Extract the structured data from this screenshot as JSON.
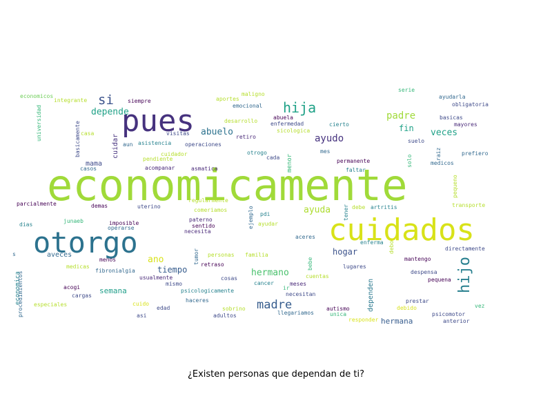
{
  "caption": "¿Existen personas que dependan de ti?",
  "palette": [
    "#440154",
    "#482878",
    "#3e4a89",
    "#31688e",
    "#26828e",
    "#1f9e89",
    "#35b779",
    "#6ece58",
    "#b5de2b",
    "#fde725"
  ],
  "chart_data": {
    "type": "wordcloud",
    "title": "¿Existen personas que dependan de ti?",
    "words": [
      {
        "text": "economicamente",
        "weight": 100,
        "color": "#a0da39"
      },
      {
        "text": "cuidados",
        "weight": 56,
        "color": "#d8e219"
      },
      {
        "text": "pues",
        "weight": 52,
        "color": "#46327e"
      },
      {
        "text": "otorgo",
        "weight": 48,
        "color": "#2c728e"
      },
      {
        "text": "hija",
        "weight": 25,
        "color": "#1fa187"
      },
      {
        "text": "hijo",
        "weight": 24,
        "color": "#277f8e"
      },
      {
        "text": "si",
        "weight": 22,
        "color": "#3b528b"
      },
      {
        "text": "madre",
        "weight": 20,
        "color": "#365c8d"
      },
      {
        "text": "padre",
        "weight": 17,
        "color": "#a0da39"
      },
      {
        "text": "hermano",
        "weight": 16,
        "color": "#4ac16d"
      },
      {
        "text": "depende",
        "weight": 15,
        "color": "#1fa187"
      },
      {
        "text": "ayudo",
        "weight": 15,
        "color": "#46327e"
      },
      {
        "text": "abuelo",
        "weight": 14,
        "color": "#2c728e"
      },
      {
        "text": "ayuda",
        "weight": 14,
        "color": "#addc30"
      },
      {
        "text": "veces",
        "weight": 14,
        "color": "#1fa187"
      },
      {
        "text": "ano",
        "weight": 13,
        "color": "#d8e219"
      },
      {
        "text": "tiempo",
        "weight": 13,
        "color": "#365c8d"
      },
      {
        "text": "hogar",
        "weight": 13,
        "color": "#3b528b"
      },
      {
        "text": "fin",
        "weight": 13,
        "color": "#1fa187"
      },
      {
        "text": "semana",
        "weight": 12,
        "color": "#1f9e89"
      },
      {
        "text": "hermana",
        "weight": 12,
        "color": "#365c8d"
      },
      {
        "text": "cuidar",
        "weight": 11,
        "color": "#46327e"
      },
      {
        "text": "mama",
        "weight": 11,
        "color": "#3e4a89"
      },
      {
        "text": "aveces",
        "weight": 11,
        "color": "#31688e"
      },
      {
        "text": "menor",
        "weight": 11,
        "color": "#35b779"
      },
      {
        "text": "economica",
        "weight": 11,
        "color": "#26828e"
      },
      {
        "text": "dependen",
        "weight": 11,
        "color": "#2a788e"
      },
      {
        "text": "universidad",
        "weight": 9,
        "color": "#35b779"
      },
      {
        "text": "basicamente",
        "weight": 9,
        "color": "#3e4a89"
      },
      {
        "text": "procedimientos",
        "weight": 9,
        "color": "#31688e"
      },
      {
        "text": "economicos",
        "weight": 9,
        "color": "#6ece58"
      },
      {
        "text": "integrante",
        "weight": 9,
        "color": "#b5de2b"
      },
      {
        "text": "siempre",
        "weight": 9,
        "color": "#440154"
      },
      {
        "text": "aportes",
        "weight": 9,
        "color": "#b5de2b"
      },
      {
        "text": "maligno",
        "weight": 9,
        "color": "#b5de2b"
      },
      {
        "text": "emocional",
        "weight": 9,
        "color": "#31688e"
      },
      {
        "text": "desarrollo",
        "weight": 9,
        "color": "#b5de2b"
      },
      {
        "text": "abuela",
        "weight": 9,
        "color": "#440154"
      },
      {
        "text": "enfermedad",
        "weight": 9,
        "color": "#3e4a89"
      },
      {
        "text": "cierto",
        "weight": 9,
        "color": "#26828e"
      },
      {
        "text": "sicologica",
        "weight": 9,
        "color": "#b5de2b"
      },
      {
        "text": "retiro",
        "weight": 9,
        "color": "#482878"
      },
      {
        "text": "serie",
        "weight": 9,
        "color": "#35b779"
      },
      {
        "text": "ayudarla",
        "weight": 9,
        "color": "#31688e"
      },
      {
        "text": "obligatoria",
        "weight": 9,
        "color": "#3e4a89"
      },
      {
        "text": "basicas",
        "weight": 9,
        "color": "#3e4a89"
      },
      {
        "text": "mayores",
        "weight": 9,
        "color": "#482878"
      },
      {
        "text": "casa",
        "weight": 9,
        "color": "#b5de2b"
      },
      {
        "text": "visitas",
        "weight": 9,
        "color": "#3e4a89"
      },
      {
        "text": "aun",
        "weight": 9,
        "color": "#31688e"
      },
      {
        "text": "asistencia",
        "weight": 9,
        "color": "#26828e"
      },
      {
        "text": "operaciones",
        "weight": 9,
        "color": "#3e4a89"
      },
      {
        "text": "suelo",
        "weight": 9,
        "color": "#3e4a89"
      },
      {
        "text": "mes",
        "weight": 9,
        "color": "#31688e"
      },
      {
        "text": "otrogo",
        "weight": 9,
        "color": "#26828e"
      },
      {
        "text": "cuidador",
        "weight": 9,
        "color": "#b5de2b"
      },
      {
        "text": "cada",
        "weight": 9,
        "color": "#3e4a89"
      },
      {
        "text": "pendiente",
        "weight": 9,
        "color": "#b5de2b"
      },
      {
        "text": "permanente",
        "weight": 9,
        "color": "#440154"
      },
      {
        "text": "raiz",
        "weight": 9,
        "color": "#31688e"
      },
      {
        "text": "prefiero",
        "weight": 9,
        "color": "#31688e"
      },
      {
        "text": "solo",
        "weight": 9,
        "color": "#35b779"
      },
      {
        "text": "medicos",
        "weight": 9,
        "color": "#31688e"
      },
      {
        "text": "casos",
        "weight": 9,
        "color": "#31688e"
      },
      {
        "text": "acompanar",
        "weight": 9,
        "color": "#482878"
      },
      {
        "text": "asmatica",
        "weight": 9,
        "color": "#482878"
      },
      {
        "text": "faltar",
        "weight": 9,
        "color": "#26828e"
      },
      {
        "text": "pequeno",
        "weight": 9,
        "color": "#b5de2b"
      },
      {
        "text": "regularmente",
        "weight": 9,
        "color": "#b5de2b"
      },
      {
        "text": "parcialmente",
        "weight": 9,
        "color": "#440154"
      },
      {
        "text": "demas",
        "weight": 9,
        "color": "#440154"
      },
      {
        "text": "uterino",
        "weight": 9,
        "color": "#3e4a89"
      },
      {
        "text": "comeriamos",
        "weight": 9,
        "color": "#b5de2b"
      },
      {
        "text": "debe",
        "weight": 9,
        "color": "#b5de2b"
      },
      {
        "text": "artritis",
        "weight": 9,
        "color": "#26828e"
      },
      {
        "text": "transporte",
        "weight": 9,
        "color": "#b5de2b"
      },
      {
        "text": "tener",
        "weight": 9,
        "color": "#26828e"
      },
      {
        "text": "pdi",
        "weight": 9,
        "color": "#26828e"
      },
      {
        "text": "ejemplo",
        "weight": 9,
        "color": "#31688e"
      },
      {
        "text": "junaeb",
        "weight": 9,
        "color": "#35b779"
      },
      {
        "text": "paterno",
        "weight": 9,
        "color": "#482878"
      },
      {
        "text": "dias",
        "weight": 9,
        "color": "#26828e"
      },
      {
        "text": "imposible",
        "weight": 9,
        "color": "#440154"
      },
      {
        "text": "operarse",
        "weight": 9,
        "color": "#31688e"
      },
      {
        "text": "sentido",
        "weight": 9,
        "color": "#440154"
      },
      {
        "text": "necesita",
        "weight": 9,
        "color": "#482878"
      },
      {
        "text": "ayudar",
        "weight": 9,
        "color": "#b5de2b"
      },
      {
        "text": "aceres",
        "weight": 9,
        "color": "#31688e"
      },
      {
        "text": "enferma",
        "weight": 9,
        "color": "#26828e"
      },
      {
        "text": "debo",
        "weight": 9,
        "color": "#b5de2b"
      },
      {
        "text": "directamente",
        "weight": 9,
        "color": "#3e4a89"
      },
      {
        "text": "s",
        "weight": 9,
        "color": "#31688e"
      },
      {
        "text": "personas",
        "weight": 9,
        "color": "#b5de2b"
      },
      {
        "text": "familia",
        "weight": 9,
        "color": "#b5de2b"
      },
      {
        "text": "tumor",
        "weight": 9,
        "color": "#31688e"
      },
      {
        "text": "retraso",
        "weight": 9,
        "color": "#440154"
      },
      {
        "text": "bebe",
        "weight": 9,
        "color": "#35b779"
      },
      {
        "text": "lugares",
        "weight": 9,
        "color": "#3e4a89"
      },
      {
        "text": "mantengo",
        "weight": 9,
        "color": "#440154"
      },
      {
        "text": "menos",
        "weight": 9,
        "color": "#440154"
      },
      {
        "text": "medicas",
        "weight": 9,
        "color": "#b5de2b"
      },
      {
        "text": "fibronialgia",
        "weight": 9,
        "color": "#31688e"
      },
      {
        "text": "usualmente",
        "weight": 9,
        "color": "#482878"
      },
      {
        "text": "cosas",
        "weight": 9,
        "color": "#3e4a89"
      },
      {
        "text": "cuentas",
        "weight": 9,
        "color": "#b5de2b"
      },
      {
        "text": "despensa",
        "weight": 9,
        "color": "#3e4a89"
      },
      {
        "text": "pequena",
        "weight": 9,
        "color": "#440154"
      },
      {
        "text": "acogi",
        "weight": 9,
        "color": "#440154"
      },
      {
        "text": "mismo",
        "weight": 9,
        "color": "#3e4a89"
      },
      {
        "text": "cancer",
        "weight": 9,
        "color": "#26828e"
      },
      {
        "text": "meses",
        "weight": 9,
        "color": "#482878"
      },
      {
        "text": "ir",
        "weight": 9,
        "color": "#35b779"
      },
      {
        "text": "cargas",
        "weight": 9,
        "color": "#3e4a89"
      },
      {
        "text": "psicologicamente",
        "weight": 9,
        "color": "#26828e"
      },
      {
        "text": "necesitan",
        "weight": 9,
        "color": "#3e4a89"
      },
      {
        "text": "prestar",
        "weight": 9,
        "color": "#3e4a89"
      },
      {
        "text": "especiales",
        "weight": 9,
        "color": "#b5de2b"
      },
      {
        "text": "cuido",
        "weight": 9,
        "color": "#d8e219"
      },
      {
        "text": "haceres",
        "weight": 9,
        "color": "#31688e"
      },
      {
        "text": "autismo",
        "weight": 9,
        "color": "#440154"
      },
      {
        "text": "debido",
        "weight": 9,
        "color": "#d8e219"
      },
      {
        "text": "vez",
        "weight": 9,
        "color": "#35b779"
      },
      {
        "text": "edad",
        "weight": 9,
        "color": "#3e4a89"
      },
      {
        "text": "sobrino",
        "weight": 9,
        "color": "#b5de2b"
      },
      {
        "text": "llegariamos",
        "weight": 9,
        "color": "#31688e"
      },
      {
        "text": "unica",
        "weight": 9,
        "color": "#35b779"
      },
      {
        "text": "psicomotor",
        "weight": 9,
        "color": "#3e4a89"
      },
      {
        "text": "asi",
        "weight": 9,
        "color": "#3e4a89"
      },
      {
        "text": "adultos",
        "weight": 9,
        "color": "#3e4a89"
      },
      {
        "text": "responder",
        "weight": 9,
        "color": "#d8e219"
      },
      {
        "text": "anterior",
        "weight": 9,
        "color": "#3e4a89"
      }
    ]
  }
}
